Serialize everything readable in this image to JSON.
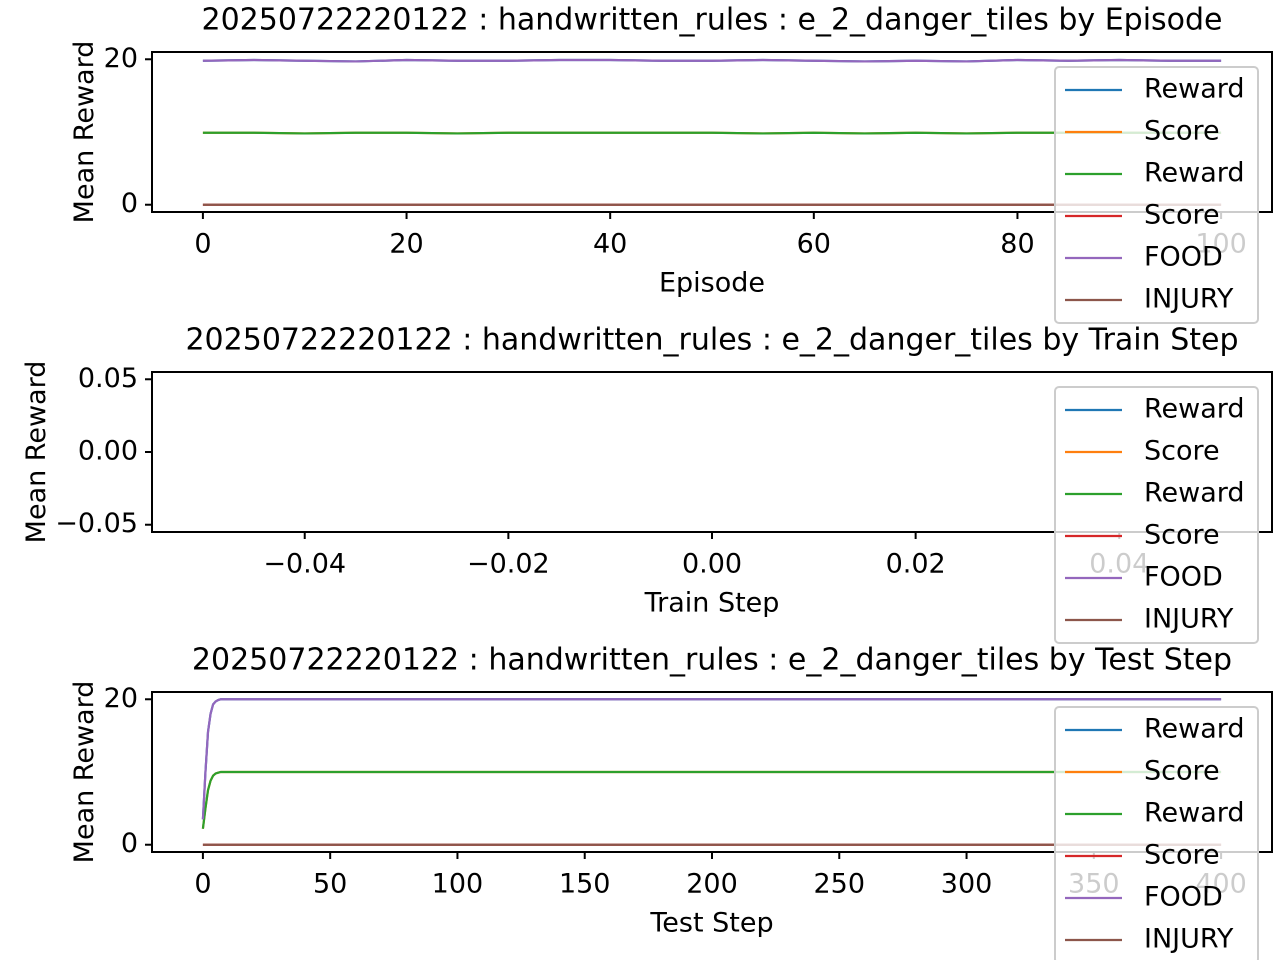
{
  "chart_data": [
    {
      "type": "line",
      "title": "20250722220122 : handwritten_rules : e_2_danger_tiles by Episode",
      "xlabel": "Episode",
      "ylabel": "Mean Reward",
      "x": [
        0,
        5,
        10,
        15,
        20,
        25,
        30,
        35,
        40,
        45,
        50,
        55,
        60,
        65,
        70,
        75,
        80,
        85,
        90,
        95,
        100
      ],
      "series": [
        {
          "name": "Reward",
          "color": "#1f77b4",
          "values": [
            19.8,
            19.9,
            19.8,
            19.7,
            19.9,
            19.8,
            19.8,
            19.9,
            19.9,
            19.8,
            19.8,
            19.9,
            19.8,
            19.7,
            19.8,
            19.7,
            19.9,
            19.8,
            19.9,
            19.8,
            19.8
          ]
        },
        {
          "name": "Score",
          "color": "#ff7f0e",
          "values": [
            9.9,
            9.9,
            9.8,
            9.9,
            9.9,
            9.8,
            9.9,
            9.9,
            9.9,
            9.9,
            9.9,
            9.8,
            9.9,
            9.8,
            9.9,
            9.8,
            9.9,
            9.9,
            9.9,
            9.9,
            9.9
          ]
        },
        {
          "name": "Reward",
          "color": "#2ca02c",
          "values": [
            9.9,
            9.9,
            9.8,
            9.9,
            9.9,
            9.8,
            9.9,
            9.9,
            9.9,
            9.9,
            9.9,
            9.8,
            9.9,
            9.8,
            9.9,
            9.8,
            9.9,
            9.9,
            9.9,
            9.9,
            9.9
          ]
        },
        {
          "name": "Score",
          "color": "#d62728",
          "values": [
            0,
            0,
            0,
            0,
            0,
            0,
            0,
            0,
            0,
            0,
            0,
            0,
            0,
            0,
            0,
            0,
            0,
            0,
            0,
            0,
            0
          ]
        },
        {
          "name": "FOOD",
          "color": "#9467bd",
          "values": [
            19.8,
            19.9,
            19.8,
            19.7,
            19.9,
            19.8,
            19.8,
            19.9,
            19.9,
            19.8,
            19.8,
            19.9,
            19.8,
            19.7,
            19.8,
            19.7,
            19.9,
            19.8,
            19.9,
            19.8,
            19.8
          ]
        },
        {
          "name": "INJURY",
          "color": "#8c564b",
          "values": [
            0,
            0,
            0,
            0,
            0,
            0,
            0,
            0,
            0,
            0,
            0,
            0,
            0,
            0,
            0,
            0,
            0,
            0,
            0,
            0,
            0
          ]
        }
      ],
      "xlim": [
        -5,
        105
      ],
      "xticks": [
        0,
        20,
        40,
        60,
        80,
        100
      ],
      "ylim": [
        -1,
        21
      ],
      "yticks": [
        0,
        20
      ],
      "legend": "upper right"
    },
    {
      "type": "line",
      "title": "20250722220122 : handwritten_rules : e_2_danger_tiles by Train Step",
      "xlabel": "Train Step",
      "ylabel": "Mean Reward",
      "x": [],
      "series": [
        {
          "name": "Reward",
          "color": "#1f77b4",
          "values": []
        },
        {
          "name": "Score",
          "color": "#ff7f0e",
          "values": []
        },
        {
          "name": "Reward",
          "color": "#2ca02c",
          "values": []
        },
        {
          "name": "Score",
          "color": "#d62728",
          "values": []
        },
        {
          "name": "FOOD",
          "color": "#9467bd",
          "values": []
        },
        {
          "name": "INJURY",
          "color": "#8c564b",
          "values": []
        }
      ],
      "xlim": [
        -0.055,
        0.055
      ],
      "xticks": [
        {
          "value": -0.04,
          "label": "−0.04"
        },
        {
          "value": -0.02,
          "label": "−0.02"
        },
        {
          "value": 0,
          "label": "0.00"
        },
        {
          "value": 0.02,
          "label": "0.02"
        },
        {
          "value": 0.04,
          "label": "0.04"
        }
      ],
      "ylim": [
        -0.055,
        0.055
      ],
      "yticks": [
        {
          "value": -0.05,
          "label": "−0.05"
        },
        {
          "value": 0,
          "label": "0.00"
        },
        0.05
      ],
      "legend": "upper right"
    },
    {
      "type": "line",
      "title": "20250722220122 : handwritten_rules : e_2_danger_tiles by Test Step",
      "xlabel": "Test Step",
      "ylabel": "Mean Reward",
      "x": [
        0,
        1,
        2,
        3,
        4,
        5,
        6,
        7,
        8,
        10,
        25,
        50,
        100,
        150,
        200,
        250,
        300,
        350,
        400
      ],
      "series": [
        {
          "name": "Reward",
          "color": "#1f77b4",
          "values": [
            3.5,
            10,
            15.5,
            18,
            19.3,
            19.7,
            19.9,
            20,
            20,
            20,
            20,
            20,
            20,
            20,
            20,
            20,
            20,
            20,
            20
          ]
        },
        {
          "name": "Score",
          "color": "#ff7f0e",
          "values": [
            2.2,
            5,
            7.5,
            8.8,
            9.5,
            9.8,
            9.9,
            10,
            10,
            10,
            10,
            10,
            10,
            10,
            10,
            10,
            10,
            10,
            10
          ]
        },
        {
          "name": "Reward",
          "color": "#2ca02c",
          "values": [
            2.2,
            5,
            7.5,
            8.8,
            9.5,
            9.8,
            9.9,
            10,
            10,
            10,
            10,
            10,
            10,
            10,
            10,
            10,
            10,
            10,
            10
          ]
        },
        {
          "name": "Score",
          "color": "#d62728",
          "values": [
            0,
            0,
            0,
            0,
            0,
            0,
            0,
            0,
            0,
            0,
            0,
            0,
            0,
            0,
            0,
            0,
            0,
            0,
            0
          ]
        },
        {
          "name": "FOOD",
          "color": "#9467bd",
          "values": [
            3.5,
            10,
            15.5,
            18,
            19.3,
            19.7,
            19.9,
            20,
            20,
            20,
            20,
            20,
            20,
            20,
            20,
            20,
            20,
            20,
            20
          ]
        },
        {
          "name": "INJURY",
          "color": "#8c564b",
          "values": [
            0,
            0,
            0,
            0,
            0,
            0,
            0,
            0,
            0,
            0,
            0,
            0,
            0,
            0,
            0,
            0,
            0,
            0,
            0
          ]
        }
      ],
      "xlim": [
        -20,
        420
      ],
      "xticks": [
        0,
        50,
        100,
        150,
        200,
        250,
        300,
        350,
        400
      ],
      "ylim": [
        -1,
        21
      ],
      "yticks": [
        0,
        20
      ],
      "legend": "upper right"
    }
  ]
}
